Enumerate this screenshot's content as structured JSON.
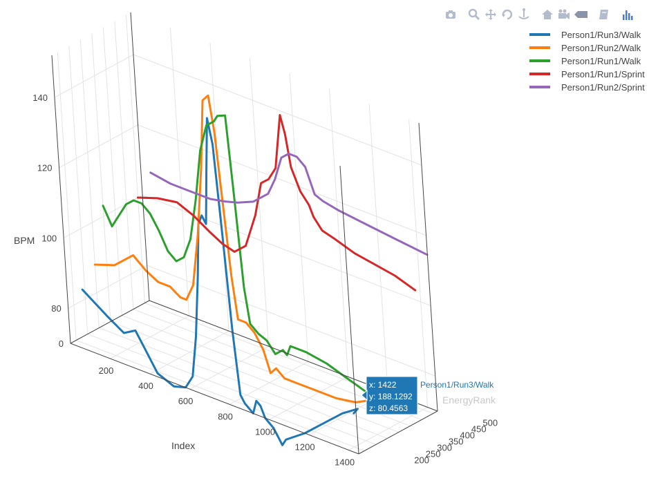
{
  "modebar": {
    "buttons": [
      {
        "icon": "camera-icon"
      },
      {
        "icon": "zoom-icon"
      },
      {
        "icon": "pan-icon"
      },
      {
        "icon": "orbit-rotation-icon"
      },
      {
        "icon": "turntable-rotation-icon"
      },
      {
        "icon": "home-icon"
      },
      {
        "icon": "video-camera-icon"
      },
      {
        "icon": "tag-icon"
      },
      {
        "icon": "edit-in-chart-studio-icon"
      },
      {
        "icon": "plotly-logo-icon"
      }
    ]
  },
  "hover": {
    "x_line": "x: 1422",
    "y_line": "y: 188.1292",
    "z_line": "z: 80.4563",
    "series_name": "Person1/Run3/Walk",
    "color": "#1f77b4"
  },
  "chart_data": {
    "type": "line",
    "projection": "3d",
    "axes": {
      "x": {
        "title": "Index",
        "ticks": [
          "200",
          "400",
          "600",
          "800",
          "1000",
          "1200",
          "1400"
        ],
        "range": [
          0,
          1450
        ]
      },
      "y": {
        "title": "EnergyRank",
        "ticks": [
          "200",
          "250",
          "300",
          "350",
          "400",
          "450",
          "500"
        ],
        "range": [
          175,
          520
        ]
      },
      "z": {
        "title": "BPM",
        "ticks": [
          "0",
          "80",
          "100",
          "120",
          "140"
        ],
        "range": [
          70,
          152
        ]
      }
    },
    "grid": true,
    "legend_position": "top-right",
    "series": [
      {
        "name": "Person1/Run3/Walk",
        "color": "#1f77b4",
        "points": [
          [
            0,
            240,
            83
          ],
          [
            120,
            240,
            78
          ],
          [
            200,
            240,
            75
          ],
          [
            260,
            240,
            77
          ],
          [
            300,
            240,
            73
          ],
          [
            360,
            240,
            67
          ],
          [
            440,
            240,
            65
          ],
          [
            500,
            240,
            66
          ],
          [
            540,
            240,
            70
          ],
          [
            570,
            240,
            82
          ],
          [
            600,
            240,
            100
          ],
          [
            620,
            240,
            115
          ],
          [
            640,
            240,
            118
          ],
          [
            660,
            240,
            116
          ],
          [
            680,
            240,
            132
          ],
          [
            700,
            240,
            147
          ],
          [
            720,
            240,
            140
          ],
          [
            740,
            240,
            115
          ],
          [
            760,
            240,
            88
          ],
          [
            780,
            240,
            70
          ],
          [
            800,
            240,
            68
          ],
          [
            840,
            240,
            66
          ],
          [
            860,
            240,
            70
          ],
          [
            880,
            240,
            69
          ],
          [
            900,
            240,
            66
          ],
          [
            940,
            240,
            64
          ],
          [
            980,
            240,
            60
          ],
          [
            1000,
            240,
            62
          ],
          [
            1100,
            240,
            66
          ],
          [
            1200,
            240,
            71
          ],
          [
            1300,
            240,
            76
          ],
          [
            1380,
            240,
            79
          ],
          [
            1422,
            188,
            80.5
          ]
        ]
      },
      {
        "name": "Person1/Run2/Walk",
        "color": "#ff7f0e",
        "points": [
          [
            0,
            300,
            88
          ],
          [
            100,
            300,
            90
          ],
          [
            200,
            300,
            95
          ],
          [
            260,
            300,
            92
          ],
          [
            320,
            300,
            90
          ],
          [
            380,
            300,
            90
          ],
          [
            430,
            300,
            88
          ],
          [
            460,
            300,
            88
          ],
          [
            500,
            300,
            93
          ],
          [
            540,
            300,
            108
          ],
          [
            580,
            300,
            128
          ],
          [
            610,
            300,
            148
          ],
          [
            640,
            300,
            150
          ],
          [
            660,
            300,
            140
          ],
          [
            680,
            300,
            120
          ],
          [
            700,
            300,
            100
          ],
          [
            720,
            300,
            88
          ],
          [
            760,
            300,
            88
          ],
          [
            800,
            300,
            86
          ],
          [
            840,
            300,
            82
          ],
          [
            860,
            300,
            78
          ],
          [
            870,
            300,
            76
          ],
          [
            900,
            300,
            78
          ],
          [
            940,
            300,
            76
          ],
          [
            1000,
            300,
            76
          ],
          [
            1100,
            300,
            76
          ],
          [
            1200,
            300,
            76
          ],
          [
            1300,
            300,
            77
          ],
          [
            1400,
            300,
            80
          ]
        ]
      },
      {
        "name": "Person1/Run1/Walk",
        "color": "#2ca02c",
        "points": [
          [
            0,
            350,
            103
          ],
          [
            40,
            350,
            98
          ],
          [
            80,
            350,
            102
          ],
          [
            120,
            350,
            106
          ],
          [
            160,
            350,
            108
          ],
          [
            200,
            350,
            108
          ],
          [
            240,
            350,
            106
          ],
          [
            280,
            350,
            102
          ],
          [
            320,
            350,
            97
          ],
          [
            360,
            350,
            95
          ],
          [
            400,
            350,
            97
          ],
          [
            440,
            350,
            103
          ],
          [
            480,
            350,
            115
          ],
          [
            520,
            350,
            130
          ],
          [
            560,
            350,
            138
          ],
          [
            600,
            350,
            140
          ],
          [
            620,
            350,
            142
          ],
          [
            660,
            350,
            143
          ],
          [
            680,
            350,
            120
          ],
          [
            700,
            350,
            95
          ],
          [
            720,
            350,
            85
          ],
          [
            760,
            350,
            83
          ],
          [
            800,
            350,
            82
          ],
          [
            840,
            350,
            79
          ],
          [
            880,
            350,
            81
          ],
          [
            900,
            350,
            80
          ],
          [
            920,
            350,
            83
          ],
          [
            1000,
            350,
            83
          ],
          [
            1100,
            350,
            82
          ],
          [
            1200,
            350,
            80
          ],
          [
            1300,
            350,
            78
          ],
          [
            1400,
            350,
            76
          ]
        ]
      },
      {
        "name": "Person1/Run1/Sprint",
        "color": "#d62728",
        "points": [
          [
            0,
            500,
            100
          ],
          [
            100,
            500,
            102
          ],
          [
            200,
            500,
            103
          ],
          [
            280,
            500,
            101
          ],
          [
            360,
            500,
            98
          ],
          [
            420,
            500,
            96
          ],
          [
            480,
            500,
            95
          ],
          [
            540,
            500,
            98
          ],
          [
            600,
            500,
            108
          ],
          [
            640,
            500,
            118
          ],
          [
            680,
            500,
            120
          ],
          [
            720,
            500,
            124
          ],
          [
            760,
            500,
            140
          ],
          [
            780,
            500,
            135
          ],
          [
            800,
            500,
            126
          ],
          [
            840,
            500,
            120
          ],
          [
            880,
            500,
            117
          ],
          [
            900,
            500,
            114
          ],
          [
            940,
            500,
            111
          ],
          [
            1000,
            500,
            110
          ],
          [
            1100,
            500,
            108
          ],
          [
            1200,
            500,
            107
          ],
          [
            1300,
            500,
            106
          ],
          [
            1400,
            500,
            104
          ]
        ]
      },
      {
        "name": "Person1/Run2/Sprint",
        "color": "#9467bd",
        "points": [
          [
            0,
            560,
            105
          ],
          [
            100,
            560,
            104
          ],
          [
            200,
            560,
            104
          ],
          [
            300,
            560,
            104
          ],
          [
            380,
            560,
            105
          ],
          [
            440,
            560,
            106
          ],
          [
            520,
            560,
            108
          ],
          [
            600,
            560,
            112
          ],
          [
            640,
            560,
            117
          ],
          [
            680,
            560,
            124
          ],
          [
            720,
            560,
            126
          ],
          [
            760,
            560,
            126
          ],
          [
            800,
            560,
            124
          ],
          [
            840,
            560,
            117
          ],
          [
            880,
            560,
            116
          ],
          [
            960,
            560,
            115
          ],
          [
            1100,
            560,
            114
          ],
          [
            1250,
            560,
            113
          ],
          [
            1400,
            560,
            112
          ]
        ]
      }
    ]
  }
}
